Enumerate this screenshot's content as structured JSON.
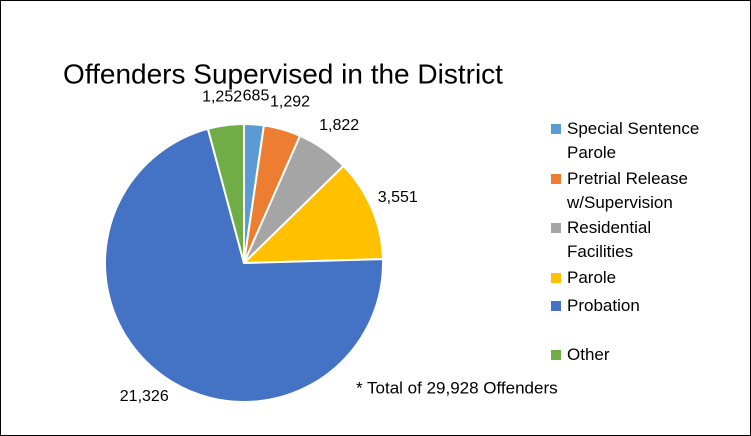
{
  "chart_data": {
    "type": "pie",
    "title": "Offenders Supervised in the District",
    "categories": [
      "Special Sentence Parole",
      "Pretrial Release w/Supervision",
      "Residential Facilities",
      "Parole",
      "Probation",
      "Other"
    ],
    "values": [
      685,
      1292,
      1822,
      3551,
      21326,
      1252
    ],
    "value_labels": [
      "685",
      "1,292",
      "1,822",
      "3,551",
      "21,326",
      "1,252"
    ],
    "colors": [
      "#5B9BD5",
      "#ED7D31",
      "#A5A5A5",
      "#FFC000",
      "#4472C4",
      "#70AD47"
    ],
    "annotation": "* Total of 29,928 Offenders"
  }
}
